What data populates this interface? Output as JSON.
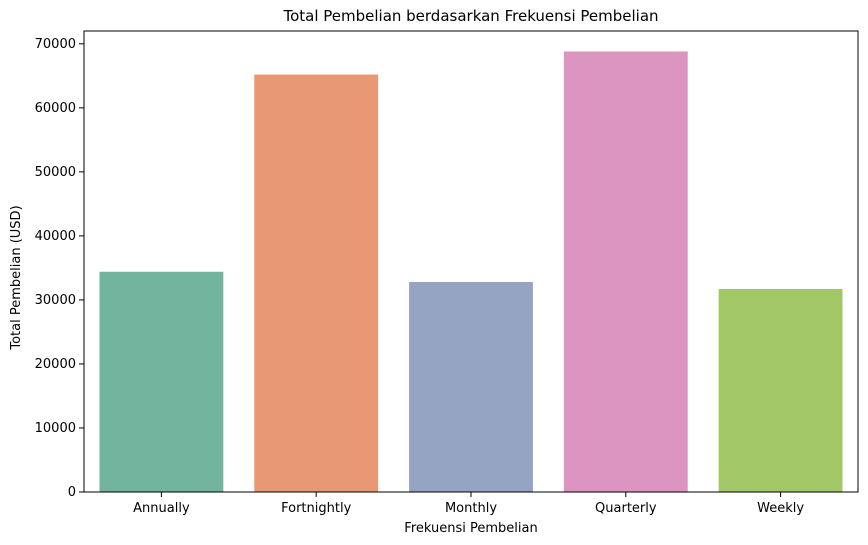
{
  "chart_data": {
    "type": "bar",
    "title": "Total Pembelian berdasarkan Frekuensi Pembelian",
    "xlabel": "Frekuensi Pembelian",
    "ylabel": "Total Pembelian (USD)",
    "categories": [
      "Annually",
      "Fortnightly",
      "Monthly",
      "Quarterly",
      "Weekly"
    ],
    "values": [
      34400,
      65200,
      32800,
      68800,
      31700
    ],
    "colors": [
      "#73b49f",
      "#e99874",
      "#95a4c2",
      "#db95c0",
      "#a2c766"
    ],
    "ylim": [
      0,
      72000
    ],
    "yticks": [
      0,
      10000,
      20000,
      30000,
      40000,
      50000,
      60000,
      70000
    ],
    "ytick_labels": [
      "0",
      "10000",
      "20000",
      "30000",
      "40000",
      "50000",
      "60000",
      "70000"
    ],
    "grid": false,
    "legend": "none"
  }
}
